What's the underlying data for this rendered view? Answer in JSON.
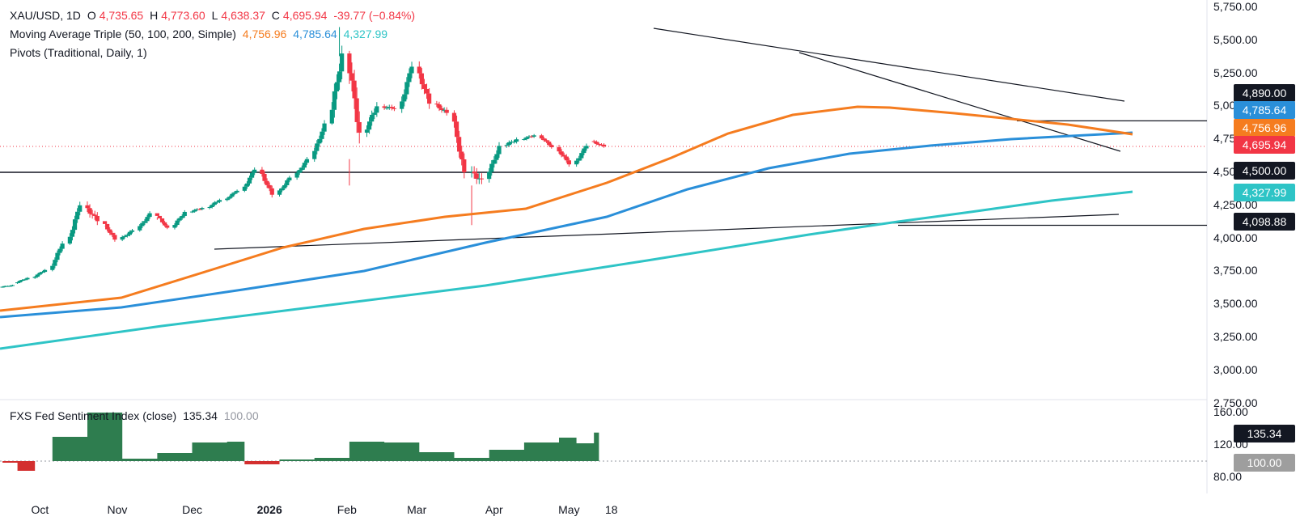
{
  "header": {
    "symbol": "XAU/USD, 1D",
    "open_label": "O",
    "open": "4,735.65",
    "high_label": "H",
    "high": "4,773.60",
    "low_label": "L",
    "low": "4,638.37",
    "close_label": "C",
    "close": "4,695.94",
    "change": "-39.77 (−0.84%)",
    "ma_label": "Moving Average Triple (50, 100, 200, Simple)",
    "ma50": "4,756.96",
    "ma100": "4,785.64",
    "ma200": "4,327.99",
    "pivots_label": "Pivots (Traditional, Daily, 1)"
  },
  "sentiment_header": {
    "label": "FXS Fed Sentiment Index (close)",
    "value": "135.34",
    "baseline": "100.00"
  },
  "price_tags": {
    "resistance": "4,890.00",
    "ma100": "4,785.64",
    "ma50": "4,756.96",
    "last": "4,695.94",
    "support": "4,500.00",
    "ma200": "4,327.99",
    "low_pivot": "4,098.88"
  },
  "sentiment_tags": {
    "value": "135.34",
    "baseline": "100.00"
  },
  "price_axis": [
    "5,750.00",
    "5,500.00",
    "5,250.00",
    "5,000.00",
    "4,750.00",
    "4,500.00",
    "4,250.00",
    "4,000.00",
    "3,750.00",
    "3,500.00",
    "3,250.00",
    "3,000.00",
    "2,750.00"
  ],
  "sentiment_axis": [
    "160.00",
    "120.00",
    "80.00"
  ],
  "time_axis": [
    "Oct",
    "Nov",
    "Dec",
    "2026",
    "Feb",
    "Mar",
    "Apr",
    "May",
    "18"
  ],
  "colors": {
    "up": "#089981",
    "down": "#f23645",
    "ma50": "#f57c1f",
    "ma100": "#2a8fd9",
    "ma200": "#2ec4c6",
    "sent_up": "#2e7d4f",
    "sent_down": "#d32f2f",
    "tag_black": "#131722",
    "tag_gray": "#9e9e9e"
  },
  "chart_data": [
    {
      "type": "candlestick",
      "title": "XAU/USD, 1D",
      "ylim": [
        2750,
        5750
      ],
      "series_candles_ohlc_approx": [
        [
          "2025-09-16",
          3630,
          3660,
          3610,
          3645
        ],
        [
          "2025-09-22",
          3660,
          3720,
          3650,
          3700
        ],
        [
          "2025-09-29",
          3700,
          3780,
          3690,
          3760
        ],
        [
          "2025-10-06",
          3760,
          3980,
          3750,
          3960
        ],
        [
          "2025-10-13",
          3960,
          4290,
          3950,
          4250
        ],
        [
          "2025-10-20",
          4250,
          4380,
          4010,
          4130
        ],
        [
          "2025-10-27",
          4130,
          4090,
          3890,
          3990
        ],
        [
          "2025-11-03",
          3990,
          4080,
          3940,
          4060
        ],
        [
          "2025-11-10",
          4060,
          4240,
          4050,
          4190
        ],
        [
          "2025-11-17",
          4190,
          4140,
          4010,
          4080
        ],
        [
          "2025-11-24",
          4080,
          4220,
          4060,
          4200
        ],
        [
          "2025-12-01",
          4200,
          4260,
          4160,
          4230
        ],
        [
          "2025-12-08",
          4230,
          4330,
          4200,
          4290
        ],
        [
          "2025-12-15",
          4290,
          4390,
          4270,
          4360
        ],
        [
          "2025-12-22",
          4360,
          4560,
          4350,
          4520
        ],
        [
          "2025-12-29",
          4520,
          4550,
          4290,
          4330
        ],
        [
          "2026-01-05",
          4330,
          4480,
          4310,
          4460
        ],
        [
          "2026-01-12",
          4460,
          4640,
          4440,
          4600
        ],
        [
          "2026-01-19",
          4600,
          4900,
          4580,
          4870
        ],
        [
          "2026-01-26",
          4870,
          5600,
          4860,
          5400
        ],
        [
          "2026-02-02",
          5400,
          5420,
          4400,
          4800
        ],
        [
          "2026-02-09",
          4800,
          5050,
          4650,
          5000
        ],
        [
          "2026-02-16",
          5000,
          5050,
          4850,
          4980
        ],
        [
          "2026-02-23",
          4980,
          5420,
          4950,
          5300
        ],
        [
          "2026-03-02",
          5300,
          5400,
          4900,
          5020
        ],
        [
          "2026-03-09",
          5020,
          5100,
          4850,
          4950
        ],
        [
          "2026-03-16",
          4950,
          4970,
          4400,
          4500
        ],
        [
          "2026-03-23",
          4500,
          4600,
          4100,
          4450
        ],
        [
          "2026-03-30",
          4450,
          4750,
          4400,
          4700
        ],
        [
          "2026-04-06",
          4700,
          4820,
          4640,
          4750
        ],
        [
          "2026-04-13",
          4750,
          4820,
          4700,
          4780
        ],
        [
          "2026-04-20",
          4780,
          4790,
          4650,
          4690
        ],
        [
          "2026-04-27",
          4690,
          4720,
          4500,
          4560
        ],
        [
          "2026-05-04",
          4560,
          4740,
          4520,
          4700
        ],
        [
          "2026-05-11",
          4735.65,
          4773.6,
          4638.37,
          4695.94
        ]
      ],
      "moving_averages": {
        "ma50_last": 4756.96,
        "ma100_last": 4785.64,
        "ma200_last": 4327.99
      },
      "horizontal_levels": [
        4890.0,
        4500.0,
        4098.88
      ]
    },
    {
      "type": "area",
      "title": "FXS Fed Sentiment Index (close)",
      "ylim": [
        80,
        160
      ],
      "baseline": 100,
      "x": [
        "2025-09-16",
        "2025-09-22",
        "2025-09-29",
        "2025-10-06",
        "2025-10-20",
        "2025-10-28",
        "2025-11-03",
        "2025-11-17",
        "2025-12-01",
        "2025-12-15",
        "2025-12-22",
        "2026-01-05",
        "2026-01-19",
        "2026-02-02",
        "2026-02-16",
        "2026-03-02",
        "2026-03-16",
        "2026-03-30",
        "2026-04-13",
        "2026-04-27",
        "2026-05-04",
        "2026-05-11"
      ],
      "values": [
        98,
        88,
        100,
        130,
        160,
        160,
        103,
        110,
        123,
        124,
        96,
        102,
        104,
        124,
        123,
        111,
        104,
        114,
        123,
        129,
        122,
        135.34
      ]
    }
  ]
}
